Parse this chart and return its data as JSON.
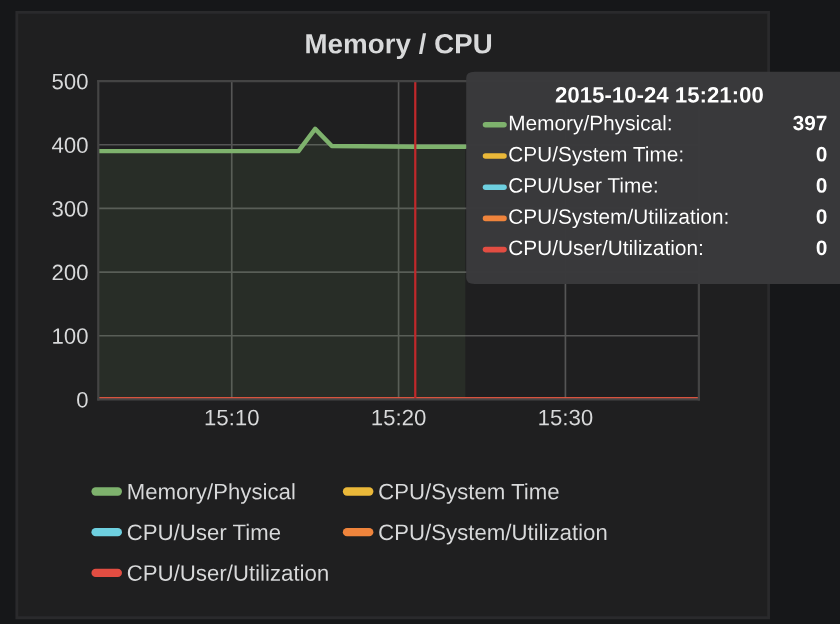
{
  "chart_data": {
    "type": "line",
    "title": "Memory / CPU",
    "x": [
      "2015-10-24T15:02",
      "2015-10-24T15:38"
    ],
    "series": [
      {
        "name": "Memory/Physical",
        "color": "#7eb26d",
        "type": "area",
        "x": [
          "2015-10-24T15:02",
          "2015-10-24T15:14",
          "2015-10-24T15:15",
          "2015-10-24T15:16",
          "2015-10-24T15:21",
          "2015-10-24T15:24"
        ],
        "values": [
          390,
          390,
          425,
          398,
          397,
          397
        ]
      },
      {
        "name": "CPU/System Time",
        "color": "#eab839",
        "values": [
          null,
          null
        ]
      },
      {
        "name": "CPU/User Time",
        "color": "#6ed0e0",
        "values": [
          null,
          null
        ]
      },
      {
        "name": "CPU/System/Utilization",
        "color": "#ef843c",
        "values": [
          0,
          0
        ]
      },
      {
        "name": "CPU/User/Utilization",
        "color": "#e24d42",
        "values": [
          0,
          0
        ]
      }
    ],
    "xlim": [
      "2015-10-24T15:02",
      "2015-10-24T15:38"
    ],
    "xticks": [
      {
        "value": "2015-10-24T15:10",
        "label": "15:10"
      },
      {
        "value": "2015-10-24T15:20",
        "label": "15:20"
      },
      {
        "value": "2015-10-24T15:30",
        "label": "15:30"
      }
    ],
    "ylim": [
      0,
      500
    ],
    "yticks": [
      0,
      100,
      200,
      300,
      400,
      500
    ],
    "ref_lines": [
      {
        "axis": "x",
        "value": "2015-10-24T15:21",
        "color": "#c0282b"
      }
    ],
    "annotations": [
      "2015-10-24 15:21:00",
      "Memory/Physical:",
      "397",
      "CPU/System Time:",
      "0",
      "CPU/User Time:",
      "0",
      "CPU/System/Utilization:",
      "0",
      "CPU/User/Utilization:",
      "0"
    ],
    "grid": true,
    "legend": "bottom",
    "marker": "none",
    "line_style": "solid"
  }
}
